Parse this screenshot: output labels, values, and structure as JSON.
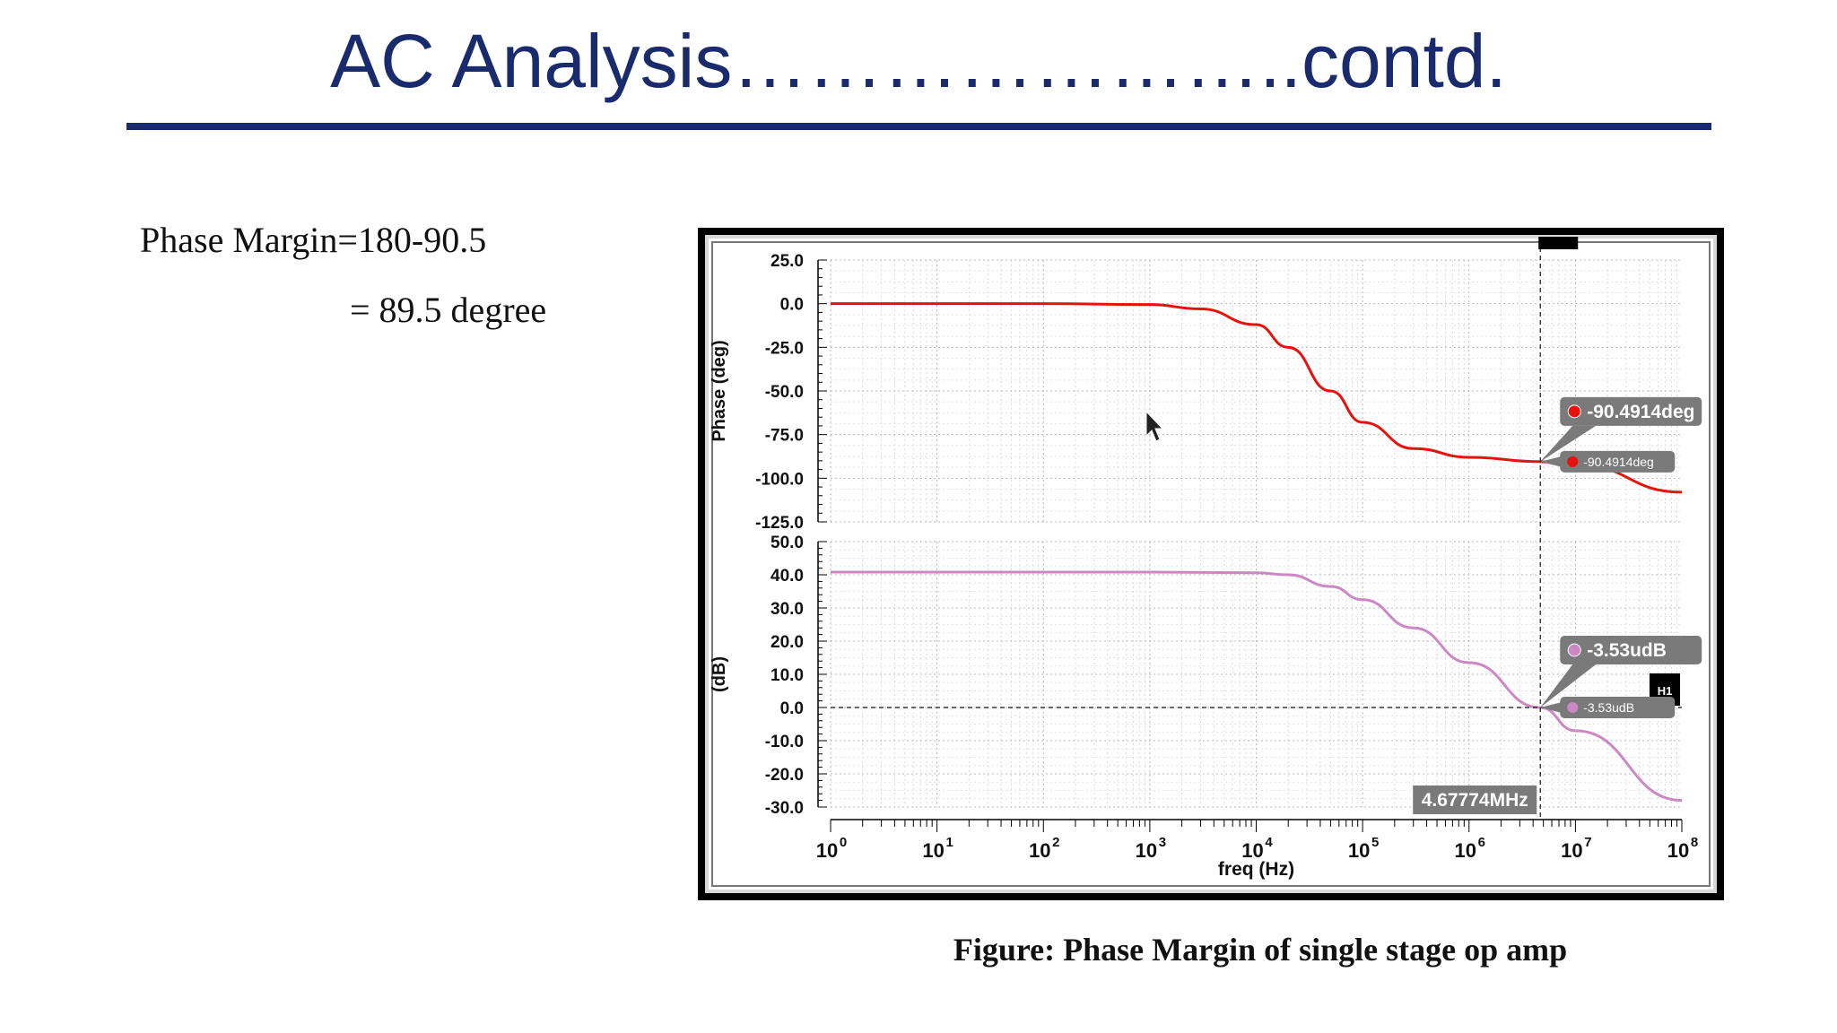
{
  "slide": {
    "title": "AC Analysis…………………..contd.",
    "pm_line1": "Phase Margin=180-90.5",
    "pm_line2": "= 89.5 degree",
    "caption": "Figure: Phase Margin of single stage op amp"
  },
  "colors": {
    "title": "#1a2b6d",
    "phase_curve": "#e8120c",
    "gain_curve": "#cc88c4",
    "marker_box": "#7a7a7a"
  },
  "chart_data": [
    {
      "type": "line",
      "ylabel": "Phase (deg)",
      "xscale": "log",
      "xlim": [
        1,
        100000000
      ],
      "ylim": [
        -125,
        25
      ],
      "yticks": [
        "25.0",
        "0.0",
        "-25.0",
        "-50.0",
        "-75.0",
        "-100.0",
        "-125.0"
      ],
      "grid": true,
      "series": [
        {
          "x": [
            1,
            10,
            100,
            1000,
            3000,
            10000,
            20000,
            50000,
            100000,
            300000,
            1000000,
            4677740,
            10000000,
            100000000
          ],
          "y": [
            0,
            0,
            0,
            -0.5,
            -3,
            -12,
            -25,
            -50,
            -68,
            -83,
            -88,
            -90.4914,
            -92,
            -108
          ]
        }
      ],
      "markers": [
        {
          "x": 4677740,
          "y": -90.4914,
          "label": "-90.4914deg",
          "small_label": "-90.4914deg"
        }
      ]
    },
    {
      "type": "line",
      "ylabel": "(dB)",
      "xlabel": "freq (Hz)",
      "xscale": "log",
      "xlim": [
        1,
        100000000
      ],
      "ylim": [
        -30,
        50
      ],
      "yticks": [
        "50.0",
        "40.0",
        "30.0",
        "20.0",
        "10.0",
        "0.0",
        "-10.0",
        "-20.0",
        "-30.0"
      ],
      "xticks": [
        "10^0",
        "10^1",
        "10^2",
        "10^3",
        "10^4",
        "10^5",
        "10^6",
        "10^7",
        "10^8"
      ],
      "grid": true,
      "series": [
        {
          "x": [
            1,
            10,
            100,
            1000,
            10000,
            20000,
            50000,
            100000,
            300000,
            1000000,
            4677740,
            10000000,
            100000000
          ],
          "y": [
            40.8,
            40.8,
            40.8,
            40.8,
            40.6,
            40,
            36.5,
            32.5,
            24,
            13.5,
            0,
            -7,
            -28
          ]
        }
      ],
      "markers": [
        {
          "x": 4677740,
          "y": 0,
          "label": "-3.53udB",
          "small_label": "-3.53udB"
        }
      ],
      "cursor": {
        "x": 4677740,
        "label": "4.67774MHz",
        "hline_label": "H1"
      }
    }
  ]
}
